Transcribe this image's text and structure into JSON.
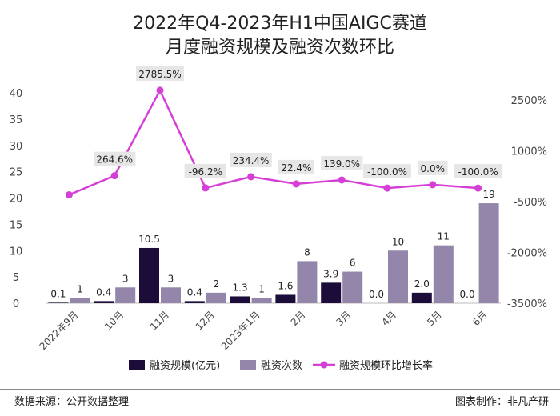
{
  "chart_data": {
    "type": "bar+line",
    "title_lines": [
      "2022年Q4-2023年H1中国AIGC赛道",
      "月度融资规模及融资次数环比"
    ],
    "categories": [
      "2022年9月",
      "10月",
      "11月",
      "12月",
      "2023年1月",
      "2月",
      "3月",
      "4月",
      "5月",
      "6月"
    ],
    "series": [
      {
        "name": "融资规模(亿元)",
        "type": "bar",
        "axis": "left",
        "color": "#1c0c3a",
        "values": [
          0.1,
          0.4,
          10.5,
          0.4,
          1.3,
          1.6,
          3.9,
          0.0,
          2.0,
          0.0
        ],
        "labels": [
          "0.1",
          "0.4",
          "10.5",
          "0.4",
          "1.3",
          "1.6",
          "3.9",
          "0.0",
          "2.0",
          "0.0"
        ]
      },
      {
        "name": "融资次数",
        "type": "bar",
        "axis": "left",
        "color": "#9486aa",
        "values": [
          1,
          3,
          3,
          2,
          1,
          8,
          6,
          10,
          11,
          19
        ],
        "labels": [
          "1",
          "3",
          "3",
          "2",
          "1",
          "8",
          "6",
          "10",
          "11",
          "19"
        ]
      },
      {
        "name": "融资规模环比增长率",
        "type": "line",
        "axis": "right",
        "color": "#d63fd6",
        "values": [
          null,
          264.6,
          2785.5,
          -96.2,
          234.4,
          22.4,
          139.0,
          -100.0,
          0.0,
          -100.0
        ],
        "labels": [
          "",
          "264.6%",
          "2785.5%",
          "-96.2%",
          "234.4%",
          "22.4%",
          "139.0%",
          "-100.0%",
          "0.0%",
          "-100.0%"
        ]
      }
    ],
    "left_axis": {
      "min": 0,
      "max": 40,
      "ticks": [
        "0",
        "5",
        "10",
        "15",
        "20",
        "25",
        "30",
        "35",
        "40"
      ]
    },
    "right_axis": {
      "min": -3500,
      "max": 2500,
      "ticks": [
        "-3500%",
        "-2000%",
        "-500%",
        "1000%",
        "2500%"
      ]
    },
    "line_first_point_value": -300,
    "legend_position": "bottom-center",
    "grid": false
  },
  "footer": {
    "source": "数据来源：公开数据整理",
    "maker": "图表制作：非凡产研"
  }
}
